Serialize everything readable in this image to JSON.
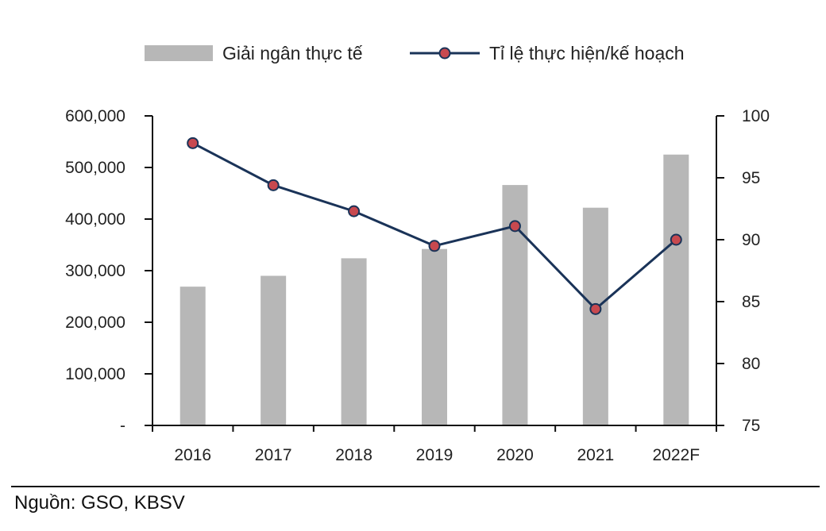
{
  "chart_data": {
    "type": "bar",
    "categories": [
      "2016",
      "2017",
      "2018",
      "2019",
      "2020",
      "2021",
      "2022F"
    ],
    "series": [
      {
        "name": "Giải ngân thực tế",
        "kind": "bar",
        "axis": "left",
        "color": "#b7b7b7",
        "values": [
          269000,
          290000,
          324000,
          342000,
          466000,
          422000,
          525000
        ]
      },
      {
        "name": "Tỉ lệ thực hiện/kế hoạch",
        "kind": "line",
        "axis": "right",
        "color": "#1a3358",
        "marker_color": "#c8494f",
        "values": [
          97.8,
          94.4,
          92.3,
          89.5,
          91.1,
          84.4,
          90.0
        ]
      }
    ],
    "y_left": {
      "lim": [
        0,
        600000
      ],
      "ticks": [
        0,
        100000,
        200000,
        300000,
        400000,
        500000,
        600000
      ],
      "tick_labels": [
        "-",
        "100,000",
        "200,000",
        "300,000",
        "400,000",
        "500,000",
        "600,000"
      ]
    },
    "y_right": {
      "lim": [
        75,
        100
      ],
      "ticks": [
        75,
        80,
        85,
        90,
        95,
        100
      ],
      "tick_labels": [
        "75",
        "80",
        "85",
        "90",
        "95",
        "100"
      ]
    },
    "grid": false,
    "legend_position": "top",
    "title": "",
    "xlabel": "",
    "ylabel": ""
  },
  "source": "Nguồn:  GSO, KBSV"
}
